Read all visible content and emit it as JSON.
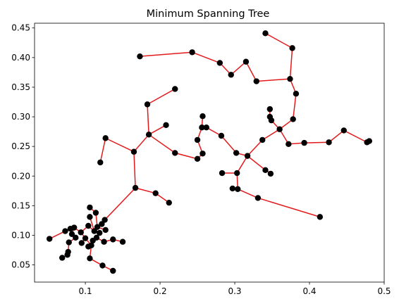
{
  "chart_data": {
    "type": "scatter",
    "title": "Minimum Spanning Tree",
    "xlabel": "",
    "ylabel": "",
    "xlim": [
      0.032,
      0.5
    ],
    "ylim": [
      0.021,
      0.458
    ],
    "xticks": [
      0.1,
      0.2,
      0.3,
      0.4,
      0.5
    ],
    "yticks": [
      0.05,
      0.1,
      0.15,
      0.2,
      0.25,
      0.3,
      0.35,
      0.4,
      0.45
    ],
    "xtick_labels": [
      "0.1",
      "0.2",
      "0.3",
      "0.4",
      "0.5"
    ],
    "ytick_labels": [
      "0.05",
      "0.10",
      "0.15",
      "0.20",
      "0.25",
      "0.30",
      "0.35",
      "0.40",
      "0.45"
    ],
    "grid": false,
    "colors": {
      "points": "#000000",
      "edges": "#e31a1c"
    },
    "points": [
      [
        0.173,
        0.402
      ],
      [
        0.243,
        0.409
      ],
      [
        0.28,
        0.391
      ],
      [
        0.295,
        0.371
      ],
      [
        0.315,
        0.393
      ],
      [
        0.329,
        0.36
      ],
      [
        0.341,
        0.441
      ],
      [
        0.377,
        0.416
      ],
      [
        0.374,
        0.364
      ],
      [
        0.382,
        0.339
      ],
      [
        0.378,
        0.296
      ],
      [
        0.347,
        0.313
      ],
      [
        0.347,
        0.3
      ],
      [
        0.349,
        0.294
      ],
      [
        0.36,
        0.279
      ],
      [
        0.372,
        0.254
      ],
      [
        0.393,
        0.256
      ],
      [
        0.426,
        0.257
      ],
      [
        0.446,
        0.277
      ],
      [
        0.477,
        0.257
      ],
      [
        0.48,
        0.259
      ],
      [
        0.337,
        0.261
      ],
      [
        0.317,
        0.234
      ],
      [
        0.302,
        0.239
      ],
      [
        0.341,
        0.21
      ],
      [
        0.348,
        0.204
      ],
      [
        0.303,
        0.205
      ],
      [
        0.283,
        0.205
      ],
      [
        0.304,
        0.178
      ],
      [
        0.297,
        0.179
      ],
      [
        0.331,
        0.163
      ],
      [
        0.414,
        0.131
      ],
      [
        0.282,
        0.268
      ],
      [
        0.262,
        0.282
      ],
      [
        0.256,
        0.282
      ],
      [
        0.257,
        0.301
      ],
      [
        0.25,
        0.261
      ],
      [
        0.257,
        0.238
      ],
      [
        0.25,
        0.229
      ],
      [
        0.22,
        0.239
      ],
      [
        0.208,
        0.286
      ],
      [
        0.185,
        0.27
      ],
      [
        0.183,
        0.321
      ],
      [
        0.22,
        0.347
      ],
      [
        0.165,
        0.241
      ],
      [
        0.127,
        0.264
      ],
      [
        0.12,
        0.223
      ],
      [
        0.167,
        0.18
      ],
      [
        0.194,
        0.171
      ],
      [
        0.212,
        0.155
      ],
      [
        0.106,
        0.147
      ],
      [
        0.114,
        0.138
      ],
      [
        0.106,
        0.131
      ],
      [
        0.126,
        0.126
      ],
      [
        0.122,
        0.119
      ],
      [
        0.116,
        0.114
      ],
      [
        0.127,
        0.109
      ],
      [
        0.112,
        0.107
      ],
      [
        0.119,
        0.104
      ],
      [
        0.104,
        0.116
      ],
      [
        0.094,
        0.105
      ],
      [
        0.1,
        0.095
      ],
      [
        0.095,
        0.087
      ],
      [
        0.108,
        0.083
      ],
      [
        0.104,
        0.081
      ],
      [
        0.11,
        0.091
      ],
      [
        0.115,
        0.096
      ],
      [
        0.125,
        0.089
      ],
      [
        0.137,
        0.093
      ],
      [
        0.15,
        0.089
      ],
      [
        0.085,
        0.113
      ],
      [
        0.08,
        0.111
      ],
      [
        0.082,
        0.102
      ],
      [
        0.087,
        0.096
      ],
      [
        0.073,
        0.107
      ],
      [
        0.052,
        0.094
      ],
      [
        0.078,
        0.088
      ],
      [
        0.077,
        0.072
      ],
      [
        0.076,
        0.067
      ],
      [
        0.069,
        0.062
      ],
      [
        0.106,
        0.061
      ],
      [
        0.123,
        0.049
      ],
      [
        0.137,
        0.04
      ]
    ],
    "edges": [
      [
        0.173,
        0.402,
        0.243,
        0.409
      ],
      [
        0.243,
        0.409,
        0.28,
        0.391
      ],
      [
        0.28,
        0.391,
        0.295,
        0.371
      ],
      [
        0.295,
        0.371,
        0.315,
        0.393
      ],
      [
        0.315,
        0.393,
        0.329,
        0.36
      ],
      [
        0.329,
        0.36,
        0.374,
        0.364
      ],
      [
        0.341,
        0.441,
        0.377,
        0.416
      ],
      [
        0.377,
        0.416,
        0.374,
        0.364
      ],
      [
        0.374,
        0.364,
        0.382,
        0.339
      ],
      [
        0.382,
        0.339,
        0.378,
        0.296
      ],
      [
        0.378,
        0.296,
        0.36,
        0.279
      ],
      [
        0.347,
        0.313,
        0.347,
        0.3
      ],
      [
        0.347,
        0.3,
        0.349,
        0.294
      ],
      [
        0.349,
        0.294,
        0.36,
        0.279
      ],
      [
        0.36,
        0.279,
        0.372,
        0.254
      ],
      [
        0.372,
        0.254,
        0.393,
        0.256
      ],
      [
        0.393,
        0.256,
        0.426,
        0.257
      ],
      [
        0.426,
        0.257,
        0.446,
        0.277
      ],
      [
        0.446,
        0.277,
        0.477,
        0.257
      ],
      [
        0.477,
        0.257,
        0.48,
        0.259
      ],
      [
        0.36,
        0.279,
        0.337,
        0.261
      ],
      [
        0.337,
        0.261,
        0.317,
        0.234
      ],
      [
        0.317,
        0.234,
        0.302,
        0.239
      ],
      [
        0.302,
        0.239,
        0.282,
        0.268
      ],
      [
        0.317,
        0.234,
        0.341,
        0.21
      ],
      [
        0.341,
        0.21,
        0.348,
        0.204
      ],
      [
        0.317,
        0.234,
        0.303,
        0.205
      ],
      [
        0.303,
        0.205,
        0.283,
        0.205
      ],
      [
        0.303,
        0.205,
        0.304,
        0.178
      ],
      [
        0.304,
        0.178,
        0.297,
        0.179
      ],
      [
        0.304,
        0.178,
        0.331,
        0.163
      ],
      [
        0.331,
        0.163,
        0.414,
        0.131
      ],
      [
        0.282,
        0.268,
        0.262,
        0.282
      ],
      [
        0.262,
        0.282,
        0.256,
        0.282
      ],
      [
        0.256,
        0.282,
        0.257,
        0.301
      ],
      [
        0.256,
        0.282,
        0.25,
        0.261
      ],
      [
        0.25,
        0.261,
        0.257,
        0.238
      ],
      [
        0.257,
        0.238,
        0.25,
        0.229
      ],
      [
        0.25,
        0.229,
        0.22,
        0.239
      ],
      [
        0.22,
        0.239,
        0.185,
        0.27
      ],
      [
        0.185,
        0.27,
        0.208,
        0.286
      ],
      [
        0.185,
        0.27,
        0.165,
        0.241
      ],
      [
        0.183,
        0.321,
        0.22,
        0.347
      ],
      [
        0.183,
        0.321,
        0.185,
        0.27
      ],
      [
        0.165,
        0.241,
        0.127,
        0.264
      ],
      [
        0.127,
        0.264,
        0.12,
        0.223
      ],
      [
        0.165,
        0.241,
        0.167,
        0.18
      ],
      [
        0.167,
        0.18,
        0.194,
        0.171
      ],
      [
        0.194,
        0.171,
        0.212,
        0.155
      ],
      [
        0.167,
        0.18,
        0.126,
        0.126
      ],
      [
        0.106,
        0.147,
        0.114,
        0.138
      ],
      [
        0.114,
        0.138,
        0.116,
        0.114
      ],
      [
        0.106,
        0.131,
        0.112,
        0.107
      ],
      [
        0.126,
        0.126,
        0.122,
        0.119
      ],
      [
        0.122,
        0.119,
        0.116,
        0.114
      ],
      [
        0.116,
        0.114,
        0.127,
        0.109
      ],
      [
        0.116,
        0.114,
        0.112,
        0.107
      ],
      [
        0.112,
        0.107,
        0.119,
        0.104
      ],
      [
        0.112,
        0.107,
        0.104,
        0.116
      ],
      [
        0.104,
        0.116,
        0.094,
        0.105
      ],
      [
        0.094,
        0.105,
        0.1,
        0.095
      ],
      [
        0.1,
        0.095,
        0.095,
        0.087
      ],
      [
        0.1,
        0.095,
        0.108,
        0.083
      ],
      [
        0.108,
        0.083,
        0.104,
        0.081
      ],
      [
        0.108,
        0.083,
        0.11,
        0.091
      ],
      [
        0.11,
        0.091,
        0.115,
        0.096
      ],
      [
        0.115,
        0.096,
        0.125,
        0.089
      ],
      [
        0.125,
        0.089,
        0.137,
        0.093
      ],
      [
        0.137,
        0.093,
        0.15,
        0.089
      ],
      [
        0.094,
        0.105,
        0.085,
        0.113
      ],
      [
        0.085,
        0.113,
        0.08,
        0.111
      ],
      [
        0.08,
        0.111,
        0.073,
        0.107
      ],
      [
        0.073,
        0.107,
        0.052,
        0.094
      ],
      [
        0.085,
        0.113,
        0.082,
        0.102
      ],
      [
        0.082,
        0.102,
        0.087,
        0.096
      ],
      [
        0.087,
        0.096,
        0.078,
        0.088
      ],
      [
        0.078,
        0.088,
        0.077,
        0.072
      ],
      [
        0.077,
        0.072,
        0.076,
        0.067
      ],
      [
        0.076,
        0.067,
        0.069,
        0.062
      ],
      [
        0.108,
        0.083,
        0.106,
        0.061
      ],
      [
        0.106,
        0.061,
        0.123,
        0.049
      ],
      [
        0.123,
        0.049,
        0.137,
        0.04
      ]
    ]
  }
}
